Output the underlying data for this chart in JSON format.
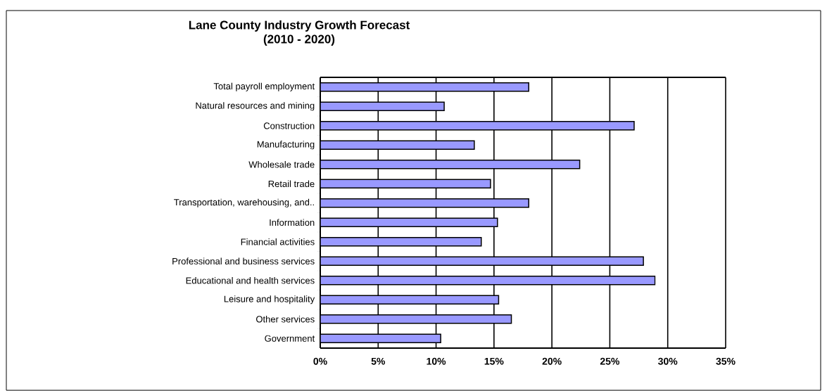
{
  "chart_data": {
    "type": "bar",
    "orientation": "horizontal",
    "title": "Lane County Industry Growth Forecast",
    "subtitle": "(2010 - 2020)",
    "categories": [
      "Total payroll employment",
      "Natural resources and mining",
      "Construction",
      "Manufacturing",
      "Wholesale trade",
      "Retail trade",
      "Transportation, warehousing, and..",
      "Information",
      "Financial activities",
      "Professional and business services",
      "Educational and health services",
      "Leisure and hospitality",
      "Other services",
      "Government"
    ],
    "values": [
      18.0,
      10.7,
      27.1,
      13.3,
      22.4,
      14.7,
      18.0,
      15.3,
      13.9,
      27.9,
      28.9,
      15.4,
      16.5,
      10.4
    ],
    "color": "#9999ff",
    "xlim": [
      0,
      35
    ],
    "xticks": [
      {
        "value": 0,
        "label": "0%"
      },
      {
        "value": 5,
        "label": "5%"
      },
      {
        "value": 10,
        "label": "10%"
      },
      {
        "value": 15,
        "label": "15%"
      },
      {
        "value": 20,
        "label": "20%"
      },
      {
        "value": 25,
        "label": "25%"
      },
      {
        "value": 30,
        "label": "30%"
      },
      {
        "value": 35,
        "label": "35%"
      }
    ],
    "grid": "x"
  }
}
